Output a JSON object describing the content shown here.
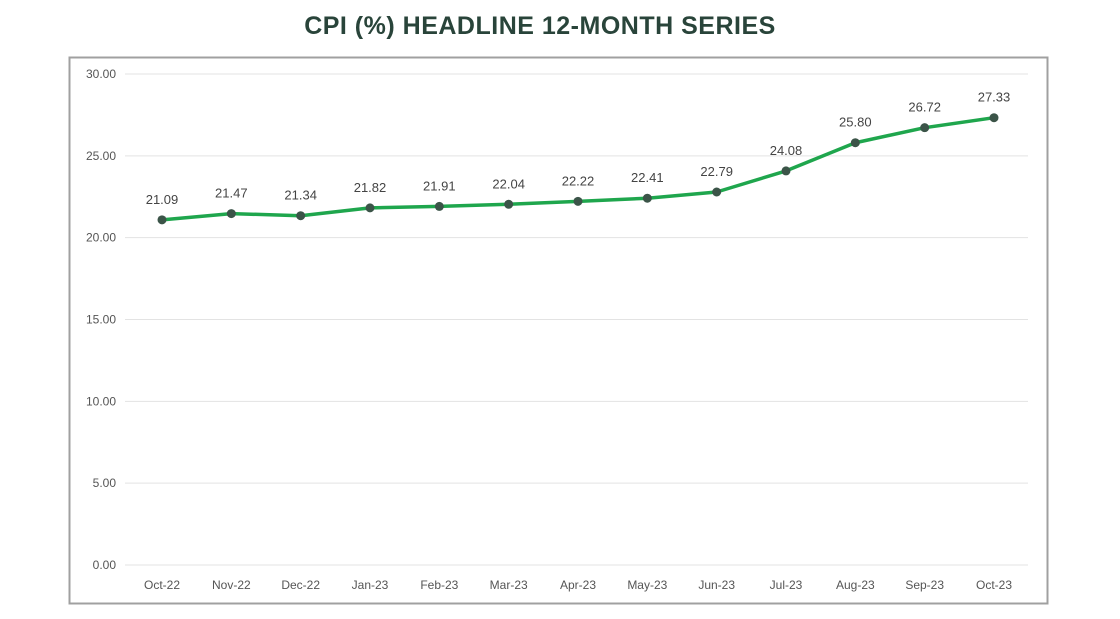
{
  "chart_data": {
    "type": "line",
    "title": "CPI (%)  HEADLINE 12-MONTH SERIES",
    "xlabel": "",
    "ylabel": "",
    "categories": [
      "Oct-22",
      "Nov-22",
      "Dec-22",
      "Jan-23",
      "Feb-23",
      "Mar-23",
      "Apr-23",
      "May-23",
      "Jun-23",
      "Jul-23",
      "Aug-23",
      "Sep-23",
      "Oct-23"
    ],
    "series": [
      {
        "values": [
          21.09,
          21.47,
          21.34,
          21.82,
          21.91,
          22.04,
          22.22,
          22.41,
          22.79,
          24.08,
          25.8,
          26.72,
          27.33
        ]
      }
    ],
    "data_labels": [
      "21.09",
      "21.47",
      "21.34",
      "21.82",
      "21.91",
      "22.04",
      "22.22",
      "22.41",
      "22.79",
      "24.08",
      "25.80",
      "26.72",
      "27.33"
    ],
    "ylim": [
      0,
      30
    ],
    "yticks": [
      "0.00",
      "5.00",
      "10.00",
      "15.00",
      "20.00",
      "25.00",
      "30.00"
    ],
    "grid": true,
    "legend": "none",
    "colors": {
      "line": "#1fa64d",
      "marker": "#3b5448",
      "title": "#29443a",
      "grid": "#e3e3e3"
    }
  }
}
